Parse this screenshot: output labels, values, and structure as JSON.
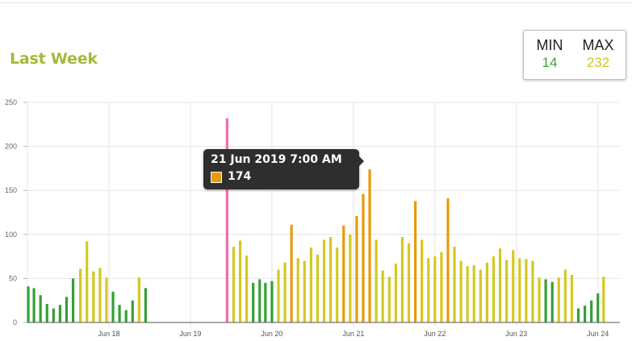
{
  "header": {
    "title": "Last Week"
  },
  "minmax": {
    "min_label": "MIN",
    "min_value": "14",
    "max_label": "MAX",
    "max_value": "232"
  },
  "tooltip": {
    "title": "21 Jun 2019 7:00 AM",
    "value": "174",
    "swatch_color": "#e99a0b"
  },
  "colors": {
    "green": "#35a035",
    "yellow": "#d4c822",
    "orange": "#e99a0b",
    "pink": "#f06db0",
    "grid": "#e4e4e4",
    "axis": "#555555"
  },
  "chart_data": {
    "type": "bar",
    "ylim": [
      0,
      250
    ],
    "y_ticks": [
      0,
      50,
      100,
      150,
      200,
      250
    ],
    "y_tick_labels": [
      "0",
      "50",
      "100",
      "150",
      "200",
      "250"
    ],
    "x_ticks": [
      {
        "label": "Jun 18",
        "day": 18
      },
      {
        "label": "Jun 19",
        "day": 19
      },
      {
        "label": "Jun 20",
        "day": 20
      },
      {
        "label": "Jun 21",
        "day": 21
      },
      {
        "label": "Jun 22",
        "day": 22
      },
      {
        "label": "Jun 23",
        "day": 23
      },
      {
        "label": "Jun 24",
        "day": 24
      }
    ],
    "x_range": [
      17.0,
      24.27
    ],
    "bars": [
      {
        "x": 17.01,
        "y": 41,
        "c": "green"
      },
      {
        "x": 17.08,
        "y": 39,
        "c": "green"
      },
      {
        "x": 17.16,
        "y": 31,
        "c": "green"
      },
      {
        "x": 17.24,
        "y": 21,
        "c": "green"
      },
      {
        "x": 17.32,
        "y": 16,
        "c": "green"
      },
      {
        "x": 17.4,
        "y": 20,
        "c": "green"
      },
      {
        "x": 17.48,
        "y": 29,
        "c": "green"
      },
      {
        "x": 17.56,
        "y": 50,
        "c": "green"
      },
      {
        "x": 17.65,
        "y": 61,
        "c": "yellow"
      },
      {
        "x": 17.73,
        "y": 92,
        "c": "yellow"
      },
      {
        "x": 17.81,
        "y": 58,
        "c": "yellow"
      },
      {
        "x": 17.89,
        "y": 62,
        "c": "yellow"
      },
      {
        "x": 17.97,
        "y": 51,
        "c": "yellow"
      },
      {
        "x": 18.05,
        "y": 35,
        "c": "green"
      },
      {
        "x": 18.13,
        "y": 20,
        "c": "green"
      },
      {
        "x": 18.21,
        "y": 14,
        "c": "green"
      },
      {
        "x": 18.29,
        "y": 25,
        "c": "green"
      },
      {
        "x": 18.37,
        "y": 51,
        "c": "yellow"
      },
      {
        "x": 18.45,
        "y": 39,
        "c": "green"
      },
      {
        "x": 19.45,
        "y": 232,
        "c": "pink"
      },
      {
        "x": 19.53,
        "y": 86,
        "c": "yellow"
      },
      {
        "x": 19.61,
        "y": 93,
        "c": "yellow"
      },
      {
        "x": 19.69,
        "y": 76,
        "c": "yellow"
      },
      {
        "x": 19.77,
        "y": 45,
        "c": "green"
      },
      {
        "x": 19.85,
        "y": 49,
        "c": "green"
      },
      {
        "x": 19.92,
        "y": 45,
        "c": "green"
      },
      {
        "x": 20.0,
        "y": 47,
        "c": "green"
      },
      {
        "x": 20.08,
        "y": 60,
        "c": "yellow"
      },
      {
        "x": 20.16,
        "y": 68,
        "c": "yellow"
      },
      {
        "x": 20.24,
        "y": 111,
        "c": "orange"
      },
      {
        "x": 20.32,
        "y": 73,
        "c": "yellow"
      },
      {
        "x": 20.4,
        "y": 70,
        "c": "yellow"
      },
      {
        "x": 20.48,
        "y": 85,
        "c": "yellow"
      },
      {
        "x": 20.56,
        "y": 77,
        "c": "yellow"
      },
      {
        "x": 20.64,
        "y": 94,
        "c": "yellow"
      },
      {
        "x": 20.72,
        "y": 97,
        "c": "yellow"
      },
      {
        "x": 20.8,
        "y": 85,
        "c": "yellow"
      },
      {
        "x": 20.88,
        "y": 110,
        "c": "orange"
      },
      {
        "x": 20.96,
        "y": 100,
        "c": "yellow"
      },
      {
        "x": 21.04,
        "y": 121,
        "c": "orange"
      },
      {
        "x": 21.12,
        "y": 146,
        "c": "orange"
      },
      {
        "x": 21.2,
        "y": 174,
        "c": "orange"
      },
      {
        "x": 21.28,
        "y": 94,
        "c": "yellow"
      },
      {
        "x": 21.36,
        "y": 59,
        "c": "yellow"
      },
      {
        "x": 21.44,
        "y": 52,
        "c": "yellow"
      },
      {
        "x": 21.52,
        "y": 67,
        "c": "yellow"
      },
      {
        "x": 21.6,
        "y": 97,
        "c": "yellow"
      },
      {
        "x": 21.68,
        "y": 90,
        "c": "yellow"
      },
      {
        "x": 21.76,
        "y": 138,
        "c": "orange"
      },
      {
        "x": 21.84,
        "y": 94,
        "c": "yellow"
      },
      {
        "x": 21.92,
        "y": 73,
        "c": "yellow"
      },
      {
        "x": 22.0,
        "y": 75,
        "c": "yellow"
      },
      {
        "x": 22.08,
        "y": 80,
        "c": "yellow"
      },
      {
        "x": 22.16,
        "y": 141,
        "c": "orange"
      },
      {
        "x": 22.24,
        "y": 86,
        "c": "yellow"
      },
      {
        "x": 22.32,
        "y": 70,
        "c": "yellow"
      },
      {
        "x": 22.4,
        "y": 64,
        "c": "yellow"
      },
      {
        "x": 22.48,
        "y": 65,
        "c": "yellow"
      },
      {
        "x": 22.56,
        "y": 60,
        "c": "yellow"
      },
      {
        "x": 22.64,
        "y": 68,
        "c": "yellow"
      },
      {
        "x": 22.72,
        "y": 75,
        "c": "yellow"
      },
      {
        "x": 22.8,
        "y": 84,
        "c": "yellow"
      },
      {
        "x": 22.88,
        "y": 71,
        "c": "yellow"
      },
      {
        "x": 22.96,
        "y": 82,
        "c": "yellow"
      },
      {
        "x": 23.04,
        "y": 73,
        "c": "yellow"
      },
      {
        "x": 23.12,
        "y": 72,
        "c": "yellow"
      },
      {
        "x": 23.2,
        "y": 70,
        "c": "yellow"
      },
      {
        "x": 23.28,
        "y": 51,
        "c": "yellow"
      },
      {
        "x": 23.36,
        "y": 49,
        "c": "green"
      },
      {
        "x": 23.44,
        "y": 46,
        "c": "green"
      },
      {
        "x": 23.52,
        "y": 51,
        "c": "yellow"
      },
      {
        "x": 23.6,
        "y": 60,
        "c": "yellow"
      },
      {
        "x": 23.68,
        "y": 54,
        "c": "yellow"
      },
      {
        "x": 23.76,
        "y": 16,
        "c": "green"
      },
      {
        "x": 23.84,
        "y": 19,
        "c": "green"
      },
      {
        "x": 23.92,
        "y": 25,
        "c": "green"
      },
      {
        "x": 24.0,
        "y": 33,
        "c": "green"
      },
      {
        "x": 24.07,
        "y": 52,
        "c": "yellow"
      }
    ]
  }
}
